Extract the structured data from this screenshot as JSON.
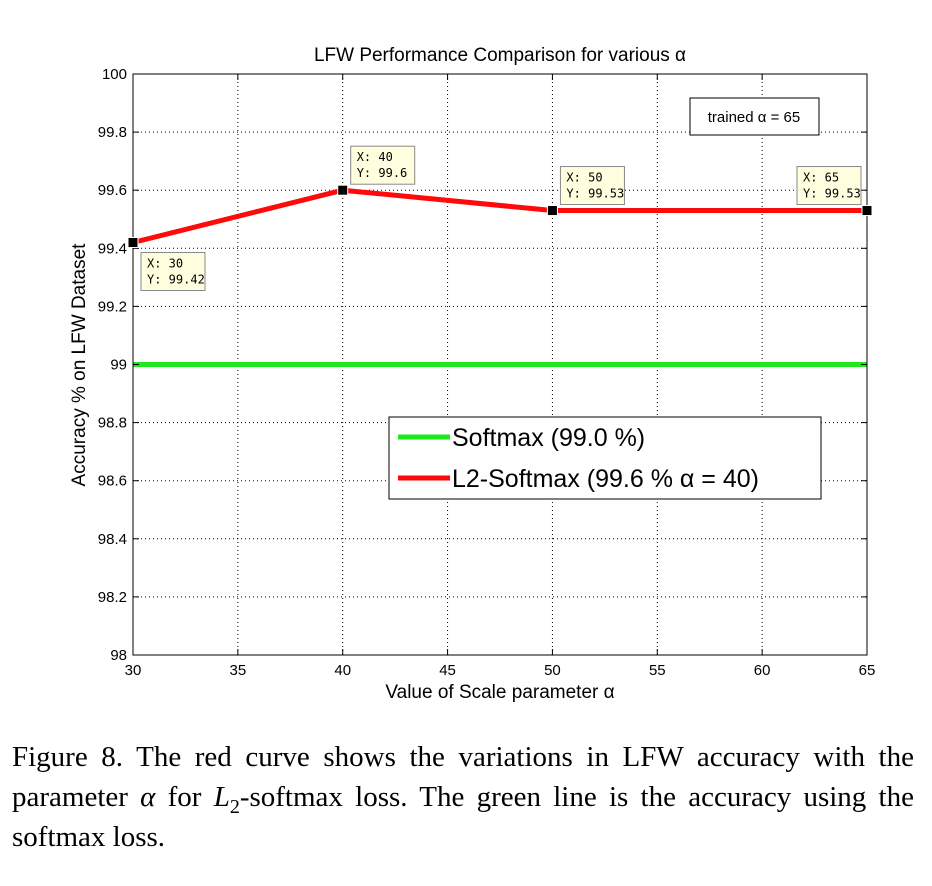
{
  "chart_data": {
    "type": "line",
    "title": "LFW Performance Comparison for various α",
    "xlabel": "Value of Scale parameter α",
    "ylabel": "Accuracy % on LFW Dataset",
    "xlim": [
      30,
      65
    ],
    "ylim": [
      98,
      100
    ],
    "x_ticks": [
      30,
      35,
      40,
      45,
      50,
      55,
      60,
      65
    ],
    "y_ticks": [
      98,
      98.2,
      98.4,
      98.6,
      98.8,
      99,
      99.2,
      99.4,
      99.6,
      99.8,
      100
    ],
    "y_tick_labels": [
      "98",
      "98.2",
      "98.4",
      "98.6",
      "98.8",
      "99",
      "99.2",
      "99.4",
      "99.6",
      "99.8",
      "100"
    ],
    "grid": true,
    "legend_position": "inside lower-right",
    "series": [
      {
        "name": "Softmax (99.0 %)",
        "color": "#1ee81e",
        "x": [
          30,
          65
        ],
        "y": [
          99.0,
          99.0
        ]
      },
      {
        "name": "L2-Softmax (99.6 % α = 40)",
        "color": "#ff0a0a",
        "x": [
          30,
          40,
          50,
          65
        ],
        "y": [
          99.42,
          99.6,
          99.53,
          99.53
        ]
      }
    ],
    "data_tips": [
      {
        "x": 30,
        "y": 99.42,
        "line1": "X: 30",
        "line2": "Y: 99.42",
        "placement": "below-right"
      },
      {
        "x": 40,
        "y": 99.6,
        "line1": "X: 40",
        "line2": "Y: 99.6",
        "placement": "above-right"
      },
      {
        "x": 50,
        "y": 99.53,
        "line1": "X: 50",
        "line2": "Y: 99.53",
        "placement": "above-right"
      },
      {
        "x": 65,
        "y": 99.53,
        "line1": "X: 65",
        "line2": "Y: 99.53",
        "placement": "above-left"
      }
    ],
    "annotation": "trained α = 65"
  },
  "caption": {
    "part1": "Figure 8. The red curve shows the variations in LFW accuracy with the parameter ",
    "alpha": "α",
    "part2": " for ",
    "L": "L",
    "sub": "2",
    "part3": "-softmax loss. The green line is the accuracy using the softmax loss."
  }
}
